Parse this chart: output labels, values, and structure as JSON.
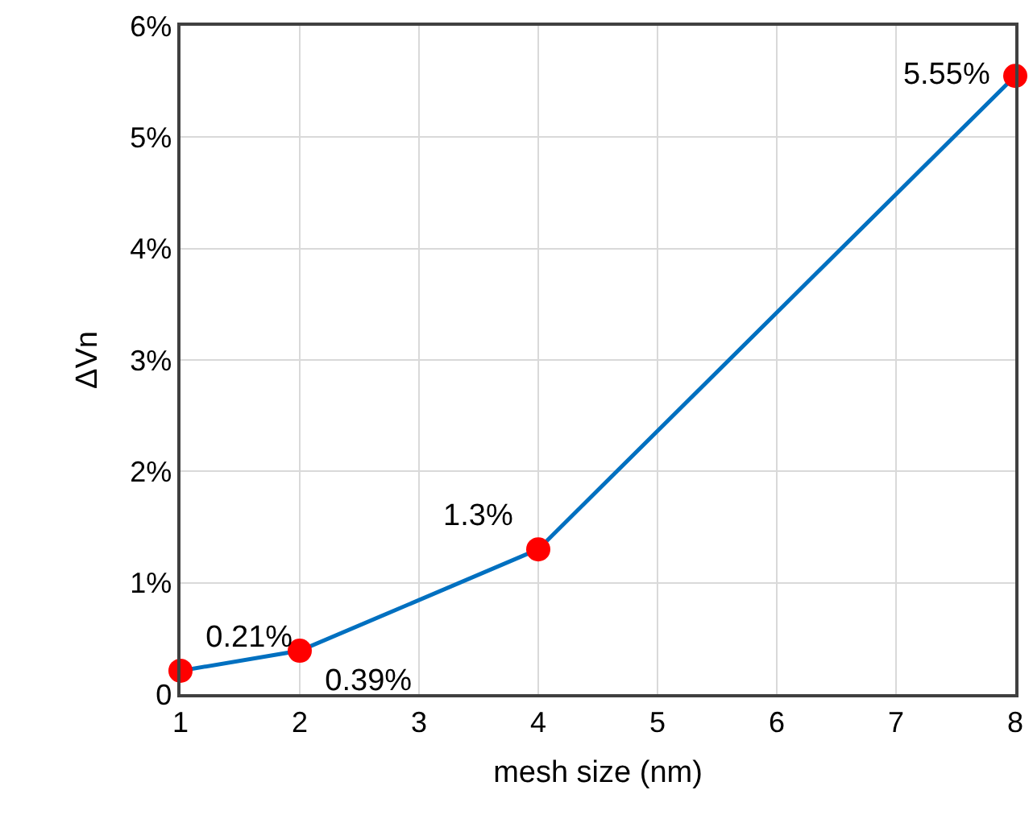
{
  "chart_data": {
    "type": "line",
    "xlabel": "mesh size (nm)",
    "ylabel": "ΔVn",
    "x": [
      1,
      2,
      4,
      8
    ],
    "series": [
      {
        "color": "#0070c0",
        "colors": [
          "#ff0000",
          "#ff0000",
          "#ff0000",
          "#ff0000"
        ],
        "values": [
          0.21,
          0.39,
          1.3,
          5.55
        ],
        "value_labels": [
          "0.21%",
          "0.39%",
          "1.3%",
          "5.55%"
        ]
      }
    ],
    "xlim": [
      1,
      8
    ],
    "xticks": [
      1,
      2,
      3,
      4,
      5,
      6,
      7,
      8
    ],
    "ylim": [
      0,
      6
    ],
    "yticks": [
      0,
      {
        "value": 1,
        "label": "1%"
      },
      {
        "value": 2,
        "label": "2%"
      },
      {
        "value": 3,
        "label": "3%"
      },
      {
        "value": 4,
        "label": "4%"
      },
      {
        "value": 5,
        "label": "5%"
      },
      {
        "value": 6,
        "label": "6%"
      }
    ],
    "grid": true,
    "marker": "circle",
    "line_style": "solid",
    "legend": false
  }
}
